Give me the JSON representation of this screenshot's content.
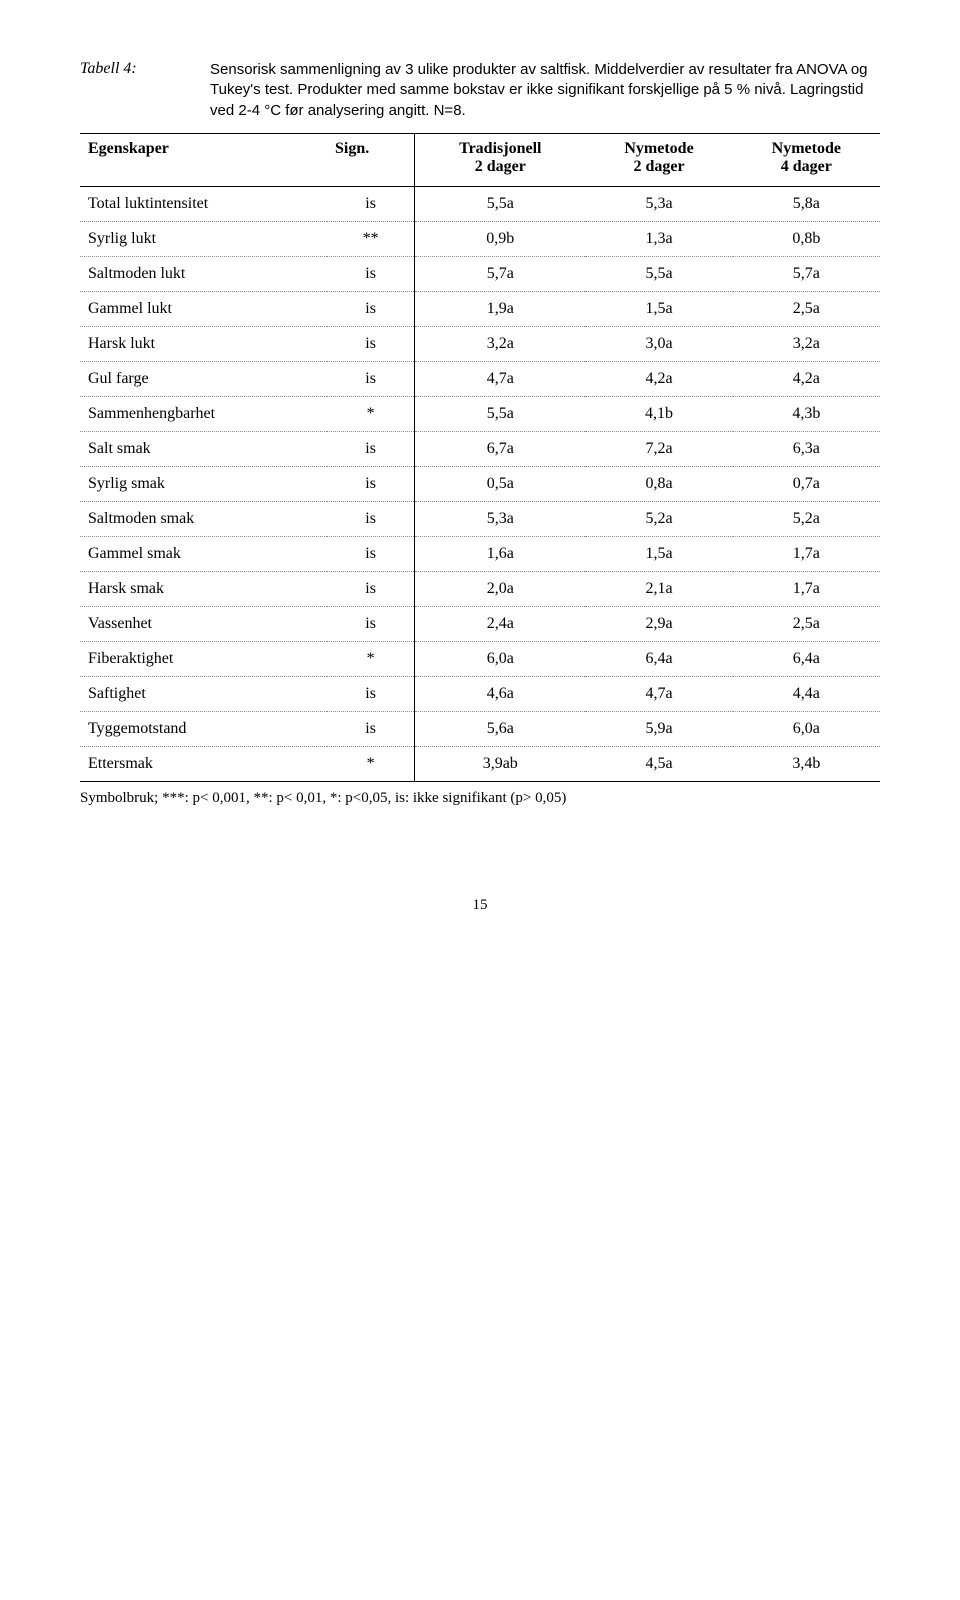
{
  "table_label": "Tabell 4:",
  "caption": "Sensorisk sammenligning av 3 ulike produkter av saltfisk. Middelverdier av resultater fra ANOVA og Tukey's test. Produkter med samme bokstav er ikke signifikant forskjellige på 5 % nivå. Lagringstid ved 2-4 °C før analysering angitt. N=8.",
  "headers": {
    "c0": "Egenskaper",
    "c1": "Sign.",
    "c2a": "Tradisjonell",
    "c2b": "2 dager",
    "c3a": "Nymetode",
    "c3b": "2 dager",
    "c4a": "Nymetode",
    "c4b": "4 dager"
  },
  "rows": [
    {
      "label": "Total luktintensitet",
      "sign": "is",
      "v1": "5,5a",
      "v2": "5,3a",
      "v3": "5,8a"
    },
    {
      "label": "Syrlig lukt",
      "sign": "**",
      "v1": "0,9b",
      "v2": "1,3a",
      "v3": "0,8b"
    },
    {
      "label": "Saltmoden lukt",
      "sign": "is",
      "v1": "5,7a",
      "v2": "5,5a",
      "v3": "5,7a"
    },
    {
      "label": "Gammel lukt",
      "sign": "is",
      "v1": "1,9a",
      "v2": "1,5a",
      "v3": "2,5a"
    },
    {
      "label": "Harsk lukt",
      "sign": "is",
      "v1": "3,2a",
      "v2": "3,0a",
      "v3": "3,2a"
    },
    {
      "label": "Gul farge",
      "sign": "is",
      "v1": "4,7a",
      "v2": "4,2a",
      "v3": "4,2a"
    },
    {
      "label": "Sammenhengbarhet",
      "sign": "*",
      "v1": "5,5a",
      "v2": "4,1b",
      "v3": "4,3b"
    },
    {
      "label": "Salt smak",
      "sign": "is",
      "v1": "6,7a",
      "v2": "7,2a",
      "v3": "6,3a"
    },
    {
      "label": "Syrlig smak",
      "sign": "is",
      "v1": "0,5a",
      "v2": "0,8a",
      "v3": "0,7a"
    },
    {
      "label": "Saltmoden smak",
      "sign": "is",
      "v1": "5,3a",
      "v2": "5,2a",
      "v3": "5,2a"
    },
    {
      "label": "Gammel smak",
      "sign": "is",
      "v1": "1,6a",
      "v2": "1,5a",
      "v3": "1,7a"
    },
    {
      "label": "Harsk smak",
      "sign": "is",
      "v1": "2,0a",
      "v2": "2,1a",
      "v3": "1,7a"
    },
    {
      "label": "Vassenhet",
      "sign": "is",
      "v1": "2,4a",
      "v2": "2,9a",
      "v3": "2,5a"
    },
    {
      "label": "Fiberaktighet",
      "sign": "*",
      "v1": "6,0a",
      "v2": "6,4a",
      "v3": "6,4a"
    },
    {
      "label": "Saftighet",
      "sign": "is",
      "v1": "4,6a",
      "v2": "4,7a",
      "v3": "4,4a"
    },
    {
      "label": "Tyggemotstand",
      "sign": "is",
      "v1": "5,6a",
      "v2": "5,9a",
      "v3": "6,0a"
    },
    {
      "label": "Ettersmak",
      "sign": "*",
      "v1": "3,9ab",
      "v2": "4,5a",
      "v3": "3,4b"
    }
  ],
  "footnote": "Symbolbruk; ***: p< 0,001, **: p< 0,01, *: p<0,05, is: ikke signifikant (p> 0,05)",
  "page": "15"
}
